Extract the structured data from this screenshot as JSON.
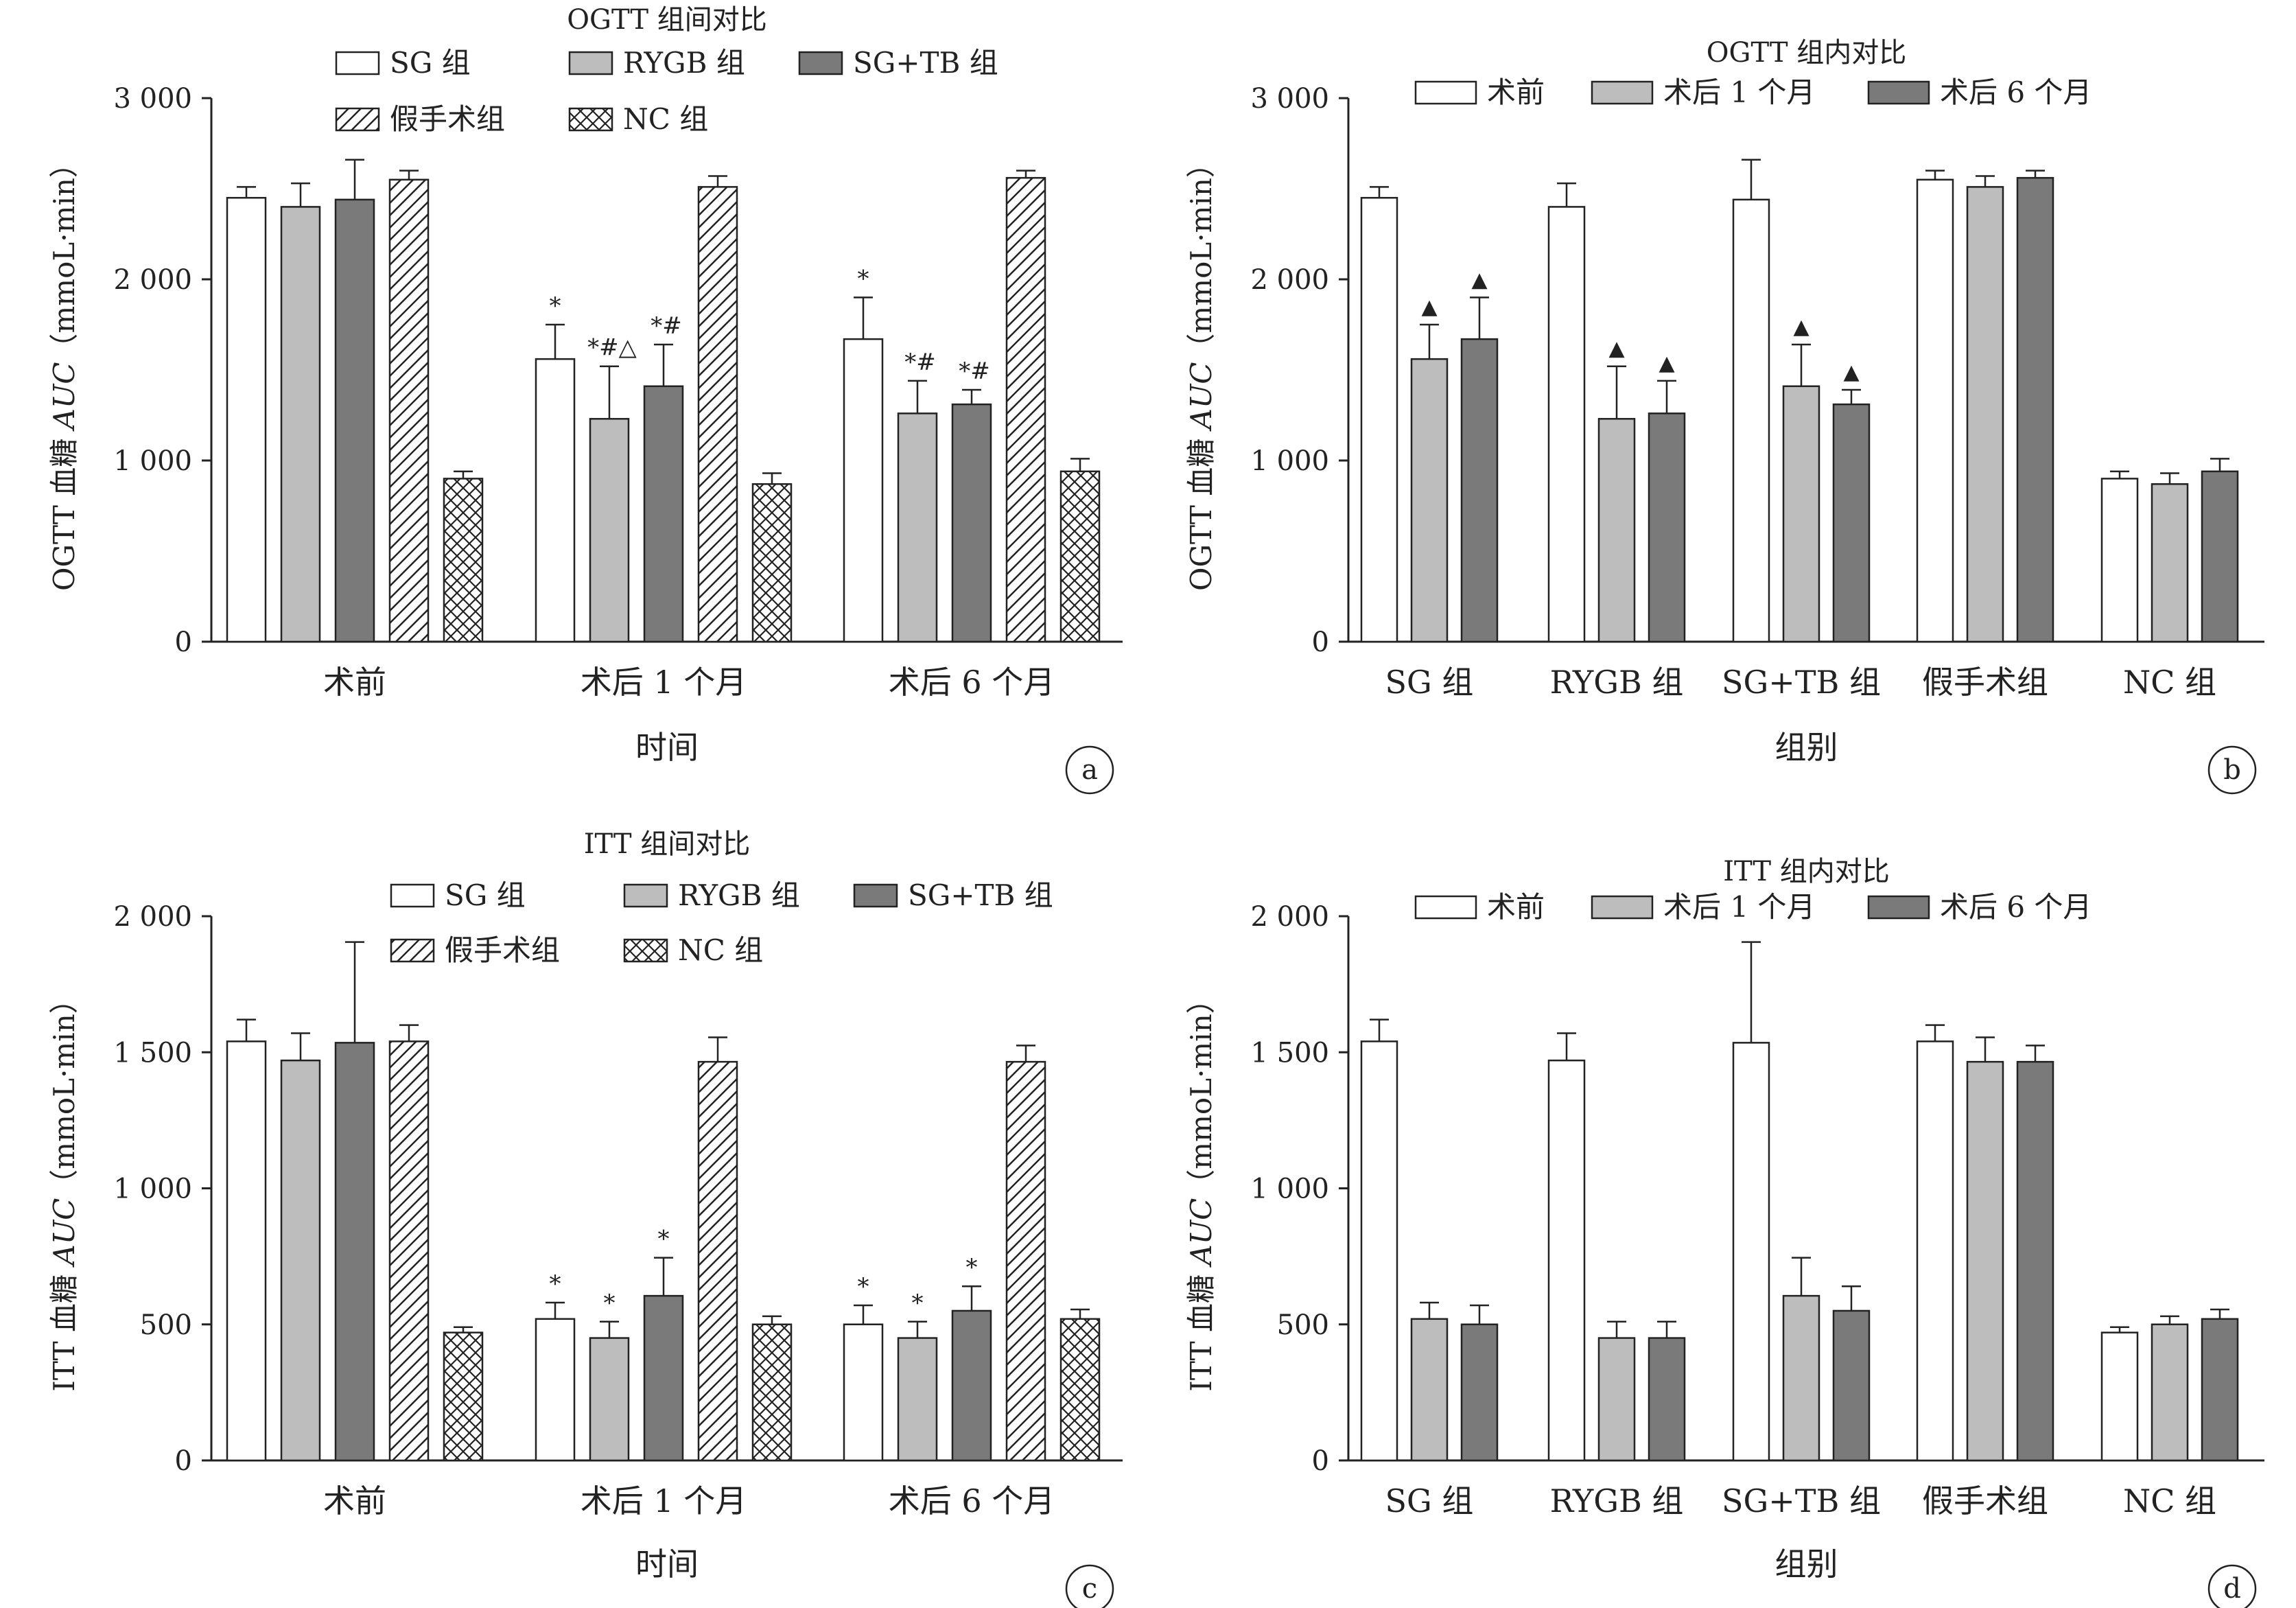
{
  "colors": {
    "white": "#ffffff",
    "light_gray": "#bdbdbd",
    "dark_gray": "#7a7a7a",
    "line": "#222222"
  },
  "chart_data": [
    {
      "id": "a",
      "type": "bar",
      "grouping": "between",
      "title": "OGTT 组间对比",
      "xlabel": "时间",
      "ylabel_parts": [
        "OGTT 血糖 ",
        "AUC",
        "（mmoL·min）"
      ],
      "ylim": [
        0,
        3000
      ],
      "yticks": [
        0,
        1000,
        2000,
        3000
      ],
      "ytick_labels": [
        "0",
        "1 000",
        "2 000",
        "3 000"
      ],
      "categories": [
        "术前",
        "术后 1 个月",
        "术后 6 个月"
      ],
      "legend_position": "top",
      "series": [
        {
          "name": "SG 组",
          "fill": "white",
          "values": [
            2450,
            1560,
            1670
          ],
          "errors": [
            60,
            190,
            230
          ],
          "marks": [
            "",
            "*",
            "*"
          ]
        },
        {
          "name": "RYGB 组",
          "fill": "light_gray",
          "values": [
            2400,
            1230,
            1260
          ],
          "errors": [
            130,
            290,
            180
          ],
          "marks": [
            "",
            "*#△",
            "*#"
          ]
        },
        {
          "name": "SG+TB 组",
          "fill": "dark_gray",
          "values": [
            2440,
            1410,
            1310
          ],
          "errors": [
            220,
            230,
            80
          ],
          "marks": [
            "",
            "*#",
            "*#"
          ]
        },
        {
          "name": "假手术组",
          "fill": "hatch",
          "values": [
            2550,
            2510,
            2560
          ],
          "errors": [
            50,
            60,
            40
          ],
          "marks": [
            "",
            "",
            ""
          ]
        },
        {
          "name": "NC 组",
          "fill": "cross",
          "values": [
            900,
            870,
            940
          ],
          "errors": [
            40,
            60,
            70
          ],
          "marks": [
            "",
            "",
            ""
          ]
        }
      ],
      "panel_label": "a"
    },
    {
      "id": "b",
      "type": "bar",
      "grouping": "within",
      "title": "OGTT 组内对比",
      "xlabel": "组别",
      "ylabel_parts": [
        "OGTT 血糖 ",
        "AUC",
        "（mmoL·min）"
      ],
      "ylim": [
        0,
        3000
      ],
      "yticks": [
        0,
        1000,
        2000,
        3000
      ],
      "ytick_labels": [
        "0",
        "1 000",
        "2 000",
        "3 000"
      ],
      "categories": [
        "SG 组",
        "RYGB 组",
        "SG+TB 组",
        "假手术组",
        "NC 组"
      ],
      "legend_position": "top",
      "series": [
        {
          "name": "术前",
          "fill": "white",
          "values": [
            2450,
            2400,
            2440,
            2550,
            900
          ],
          "errors": [
            60,
            130,
            220,
            50,
            40
          ],
          "marks": [
            "",
            "",
            "",
            "",
            ""
          ]
        },
        {
          "name": "术后 1 个月",
          "fill": "light_gray",
          "values": [
            1560,
            1230,
            1410,
            2510,
            870
          ],
          "errors": [
            190,
            290,
            230,
            60,
            60
          ],
          "marks": [
            "▲",
            "▲",
            "▲",
            "",
            ""
          ]
        },
        {
          "name": "术后 6 个月",
          "fill": "dark_gray",
          "values": [
            1670,
            1260,
            1310,
            2560,
            940
          ],
          "errors": [
            230,
            180,
            80,
            40,
            70
          ],
          "marks": [
            "▲",
            "▲",
            "▲",
            "",
            ""
          ]
        }
      ],
      "panel_label": "b"
    },
    {
      "id": "c",
      "type": "bar",
      "grouping": "between",
      "title": "ITT 组间对比",
      "xlabel": "时间",
      "ylabel_parts": [
        "ITT 血糖 ",
        "AUC",
        "（mmoL·min）"
      ],
      "ylim": [
        0,
        2000
      ],
      "yticks": [
        0,
        500,
        1000,
        1500,
        2000
      ],
      "ytick_labels": [
        "0",
        "500",
        "1 000",
        "1 500",
        "2 000"
      ],
      "categories": [
        "术前",
        "术后 1 个月",
        "术后 6 个月"
      ],
      "legend_position": "top",
      "series": [
        {
          "name": "SG 组",
          "fill": "white",
          "values": [
            1540,
            520,
            500
          ],
          "errors": [
            80,
            60,
            70
          ],
          "marks": [
            "",
            "*",
            "*"
          ]
        },
        {
          "name": "RYGB 组",
          "fill": "light_gray",
          "values": [
            1470,
            450,
            450
          ],
          "errors": [
            100,
            60,
            60
          ],
          "marks": [
            "",
            "*",
            "*"
          ]
        },
        {
          "name": "SG+TB 组",
          "fill": "dark_gray",
          "values": [
            1535,
            605,
            550
          ],
          "errors": [
            370,
            140,
            90
          ],
          "marks": [
            "",
            "*",
            "*"
          ]
        },
        {
          "name": "假手术组",
          "fill": "hatch",
          "values": [
            1540,
            1465,
            1465
          ],
          "errors": [
            60,
            90,
            60
          ],
          "marks": [
            "",
            "",
            ""
          ]
        },
        {
          "name": "NC 组",
          "fill": "cross",
          "values": [
            470,
            500,
            520
          ],
          "errors": [
            20,
            30,
            35
          ],
          "marks": [
            "",
            "",
            ""
          ]
        }
      ],
      "panel_label": "c"
    },
    {
      "id": "d",
      "type": "bar",
      "grouping": "within",
      "title": "ITT 组内对比",
      "xlabel": "组别",
      "ylabel_parts": [
        "ITT 血糖 ",
        "AUC",
        "（mmoL·min）"
      ],
      "ylim": [
        0,
        2000
      ],
      "yticks": [
        0,
        500,
        1000,
        1500,
        2000
      ],
      "ytick_labels": [
        "0",
        "500",
        "1 000",
        "1 500",
        "2 000"
      ],
      "categories": [
        "SG 组",
        "RYGB 组",
        "SG+TB 组",
        "假手术组",
        "NC 组"
      ],
      "legend_position": "top",
      "series": [
        {
          "name": "术前",
          "fill": "white",
          "values": [
            1540,
            1470,
            1535,
            1540,
            470
          ],
          "errors": [
            80,
            100,
            370,
            60,
            20
          ],
          "marks": [
            "",
            "",
            "",
            "",
            ""
          ]
        },
        {
          "name": "术后 1 个月",
          "fill": "light_gray",
          "values": [
            520,
            450,
            605,
            1465,
            500
          ],
          "errors": [
            60,
            60,
            140,
            90,
            30
          ],
          "marks": [
            "",
            "",
            "",
            "",
            ""
          ]
        },
        {
          "name": "术后 6 个月",
          "fill": "dark_gray",
          "values": [
            500,
            450,
            550,
            1465,
            520
          ],
          "errors": [
            70,
            60,
            90,
            60,
            35
          ],
          "marks": [
            "",
            "",
            "",
            "",
            ""
          ]
        }
      ],
      "panel_label": "d"
    }
  ]
}
